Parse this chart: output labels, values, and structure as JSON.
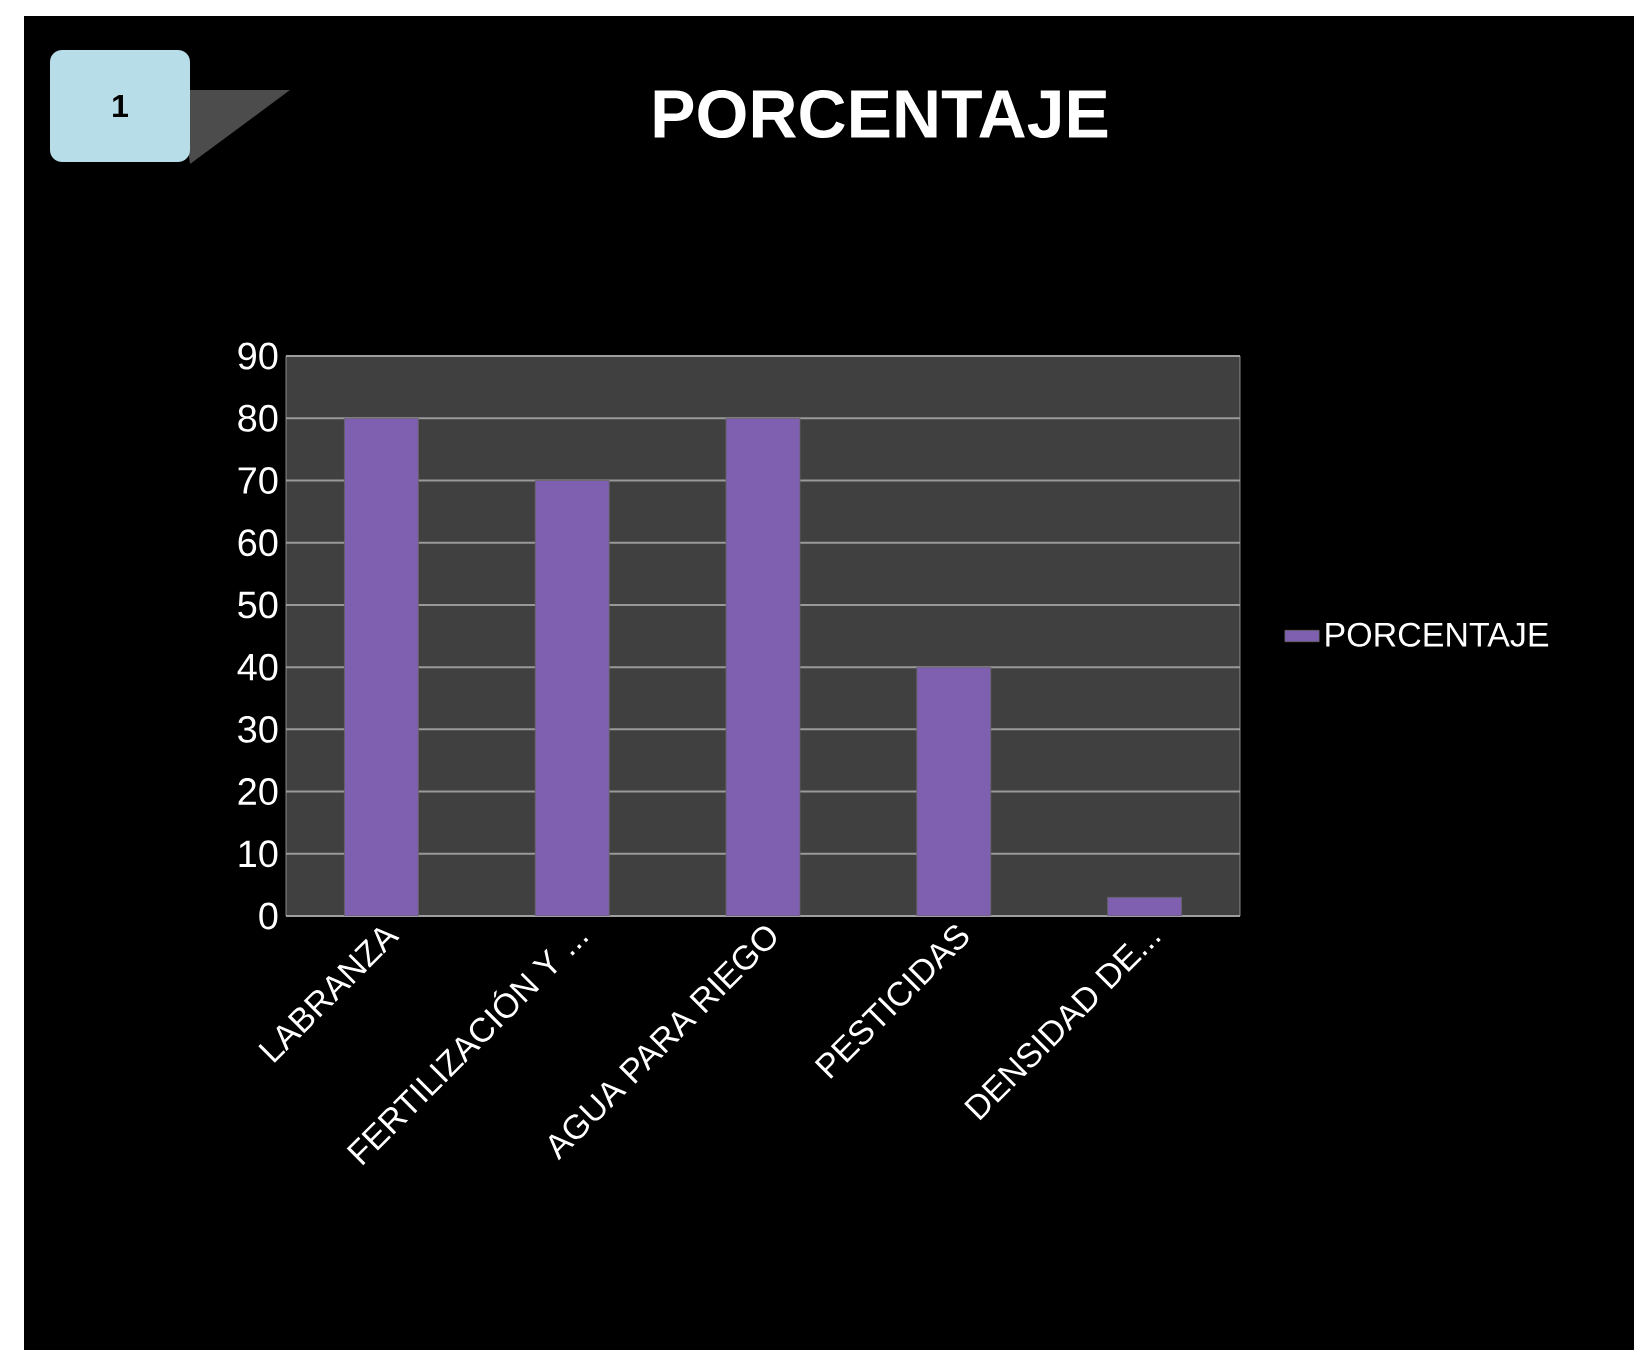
{
  "chart_data": {
    "type": "bar",
    "title": "PORCENTAJE",
    "annotations": [
      "1"
    ],
    "categories": [
      "LABRANZA",
      "FERTILIZACIÓN Y ...",
      "AGUA PARA RIEGO",
      "PESTICIDAS",
      "DENSIDAD DE..."
    ],
    "series": [
      {
        "name": "PORCENTAJE",
        "color": "#7f5fb0",
        "values": [
          80,
          70,
          80,
          40,
          3
        ]
      }
    ],
    "ylim": [
      0,
      90
    ],
    "yticks": [
      0,
      10,
      20,
      30,
      40,
      50,
      60,
      70,
      80,
      90
    ],
    "grid": "y",
    "legend": "right"
  }
}
